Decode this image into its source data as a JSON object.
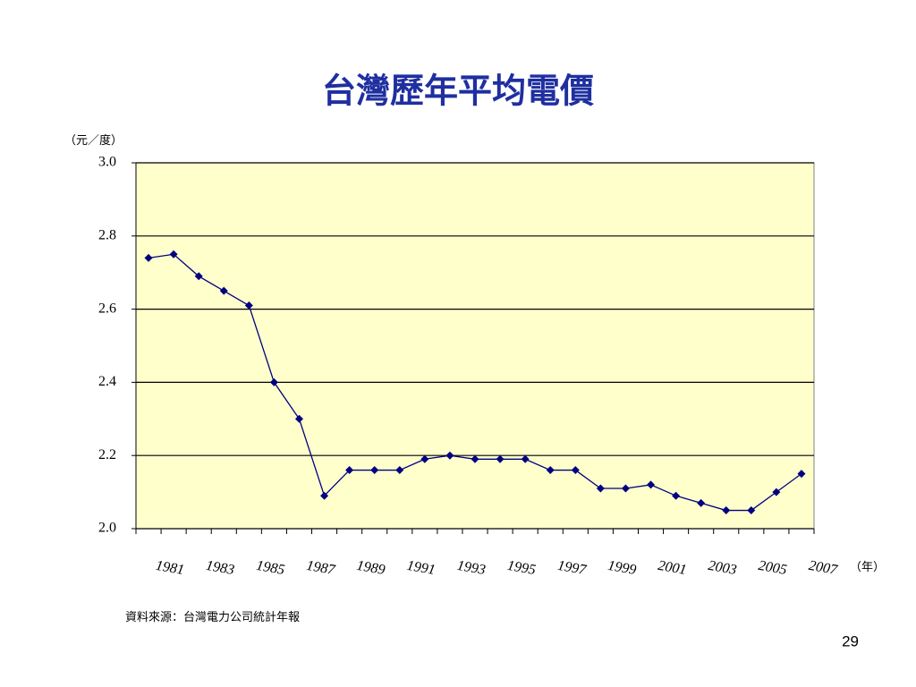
{
  "chart_data": {
    "type": "line",
    "title": "台灣歷年平均電價",
    "y_label": "（元／度）",
    "x_label": "（年）",
    "source": "資料來源：台灣電力公司統計年報",
    "page_number": "29",
    "categories": [
      "1981",
      null,
      "1983",
      null,
      "1985",
      null,
      "1987",
      null,
      "1989",
      null,
      "1991",
      null,
      "1993",
      null,
      "1995",
      null,
      "1997",
      null,
      "1999",
      null,
      "2001",
      null,
      "2003",
      null,
      "2005",
      null,
      "2007"
    ],
    "values": [
      2.74,
      2.75,
      2.69,
      2.65,
      2.61,
      2.4,
      2.3,
      2.09,
      2.16,
      2.16,
      2.16,
      2.19,
      2.2,
      2.19,
      2.19,
      2.19,
      2.16,
      2.16,
      2.11,
      2.11,
      2.12,
      2.09,
      2.07,
      2.05,
      2.05,
      2.1,
      2.15
    ],
    "color": "#000080",
    "ylim": [
      2.0,
      3.0
    ],
    "yticks": [
      {
        "value": 2.0,
        "label": "2.0"
      },
      {
        "value": 2.2,
        "label": "2.2"
      },
      {
        "value": 2.4,
        "label": "2.4"
      },
      {
        "value": 2.6,
        "label": "2.6"
      },
      {
        "value": 2.8,
        "label": "2.8"
      },
      {
        "value": 3.0,
        "label": "3.0"
      }
    ],
    "grid": true
  }
}
